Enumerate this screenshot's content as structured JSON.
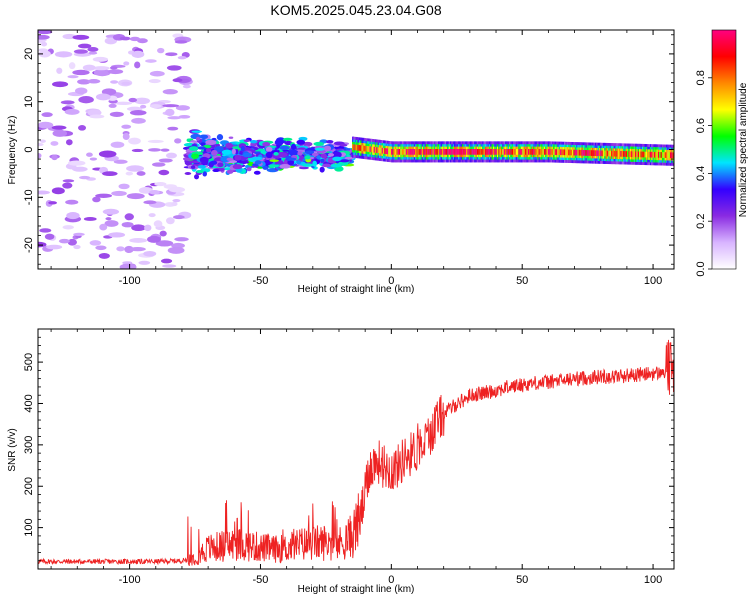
{
  "title": "KOM5.2025.045.23.04.G08",
  "chart_data": [
    {
      "type": "heatmap",
      "xlabel": "Height of straight line (km)",
      "ylabel": "Frequency (Hz)",
      "xlim": [
        -135,
        108
      ],
      "ylim": [
        -25,
        25
      ],
      "xticks": [
        -100,
        -50,
        0,
        50,
        100
      ],
      "xtick_labels": [
        "-100",
        "-50",
        "0",
        "50",
        "100"
      ],
      "yticks": [
        -20,
        -10,
        0,
        10,
        20
      ],
      "ytick_labels": [
        "-20",
        "-10",
        "0",
        "10",
        "20"
      ],
      "colorbar": {
        "label": "Normalized spectral amplitude",
        "range": [
          0,
          1
        ],
        "ticks": [
          0.0,
          0.2,
          0.4,
          0.6,
          0.8
        ],
        "tick_labels": [
          "0.0",
          "0.2",
          "0.4",
          "0.6",
          "0.8"
        ],
        "colormap": [
          "#ffffff",
          "#d8b4ff",
          "#8a2be2",
          "#3300ff",
          "#00e5ff",
          "#00ff00",
          "#ffff00",
          "#ff8800",
          "#ff0000",
          "#ff0080"
        ]
      },
      "regions": [
        {
          "name": "scattered noise",
          "x_range": [
            -135,
            -78
          ],
          "y_range": [
            -25,
            25
          ],
          "amplitude": 0.1
        },
        {
          "name": "transition",
          "x_range": [
            -78,
            -15
          ],
          "y_range": [
            -6,
            5
          ],
          "amplitude": 0.25
        },
        {
          "name": "direct signal",
          "x_range": [
            -15,
            108
          ],
          "center_freq": -0.5,
          "amplitude": 0.85
        }
      ]
    },
    {
      "type": "line",
      "xlabel": "Height of straight line (km)",
      "ylabel": "SNR (v/v)",
      "xlim": [
        -135,
        108
      ],
      "ylim": [
        0,
        580
      ],
      "xticks": [
        -100,
        -50,
        0,
        50,
        100
      ],
      "xtick_labels": [
        "-100",
        "-50",
        "0",
        "50",
        "100"
      ],
      "yticks": [
        100,
        200,
        300,
        400,
        500
      ],
      "ytick_labels": [
        "100",
        "200",
        "300",
        "400",
        "500"
      ],
      "series": [
        {
          "color": "#ee2222",
          "x": [
            -135,
            -120,
            -100,
            -90,
            -80,
            -75,
            -70,
            -65,
            -60,
            -55,
            -50,
            -45,
            -40,
            -35,
            -30,
            -25,
            -20,
            -15,
            -12,
            -10,
            -8,
            -5,
            -3,
            0,
            3,
            5,
            8,
            10,
            13,
            15,
            18,
            20,
            23,
            25,
            28,
            30,
            35,
            40,
            45,
            50,
            55,
            60,
            65,
            70,
            75,
            80,
            85,
            90,
            95,
            100,
            103,
            105,
            107,
            108
          ],
          "y": [
            18,
            18,
            18,
            18,
            20,
            28,
            50,
            55,
            60,
            58,
            52,
            48,
            50,
            60,
            62,
            65,
            60,
            80,
            120,
            180,
            250,
            260,
            250,
            240,
            250,
            270,
            280,
            290,
            310,
            330,
            360,
            375,
            390,
            400,
            410,
            420,
            425,
            432,
            440,
            445,
            450,
            452,
            455,
            460,
            462,
            465,
            465,
            468,
            470,
            472,
            474,
            476,
            480,
            480
          ]
        }
      ]
    }
  ]
}
